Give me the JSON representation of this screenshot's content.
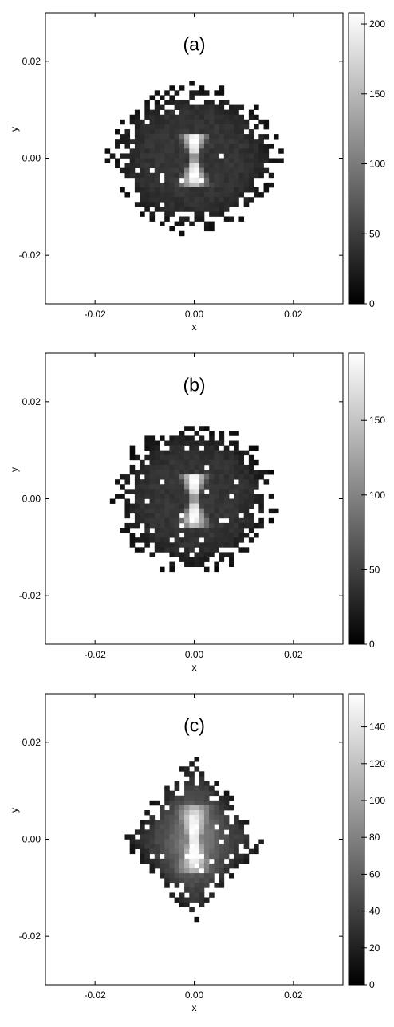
{
  "chart_data": [
    {
      "type": "heatmap",
      "panel_label": "(a)",
      "xlabel": "x",
      "ylabel": "y",
      "xlim": [
        -0.03,
        0.03
      ],
      "ylim": [
        -0.03,
        0.03
      ],
      "xticks": [
        "-0.02",
        "0.00",
        "0.02"
      ],
      "yticks": [
        "0.02",
        "0.00",
        "-0.02"
      ],
      "colorbar": {
        "min": 0,
        "max": 208,
        "ticks": [
          "200",
          "150",
          "100",
          "50",
          "0"
        ],
        "tick_values": [
          200,
          150,
          100,
          50,
          0
        ]
      },
      "shape": "hourglass",
      "spread": {
        "x": 0.0155,
        "y": 0.0135
      },
      "peak_value": 208
    },
    {
      "type": "heatmap",
      "panel_label": "(b)",
      "xlabel": "x",
      "ylabel": "y",
      "xlim": [
        -0.03,
        0.03
      ],
      "ylim": [
        -0.03,
        0.03
      ],
      "xticks": [
        "-0.02",
        "0.00",
        "0.02"
      ],
      "yticks": [
        "0.02",
        "0.00",
        "-0.02"
      ],
      "colorbar": {
        "min": 0,
        "max": 195,
        "ticks": [
          "150",
          "100",
          "50",
          "0"
        ],
        "tick_values": [
          150,
          100,
          50,
          0
        ]
      },
      "shape": "hourglass",
      "spread": {
        "x": 0.0145,
        "y": 0.0135
      },
      "peak_value": 195
    },
    {
      "type": "heatmap",
      "panel_label": "(c)",
      "xlabel": "x",
      "ylabel": "y",
      "xlim": [
        -0.03,
        0.03
      ],
      "ylim": [
        -0.03,
        0.03
      ],
      "xticks": [
        "-0.02",
        "0.00",
        "0.02"
      ],
      "yticks": [
        "0.02",
        "0.00",
        "-0.02"
      ],
      "colorbar": {
        "min": 0,
        "max": 158,
        "ticks": [
          "140",
          "120",
          "100",
          "80",
          "60",
          "40",
          "20",
          "0"
        ],
        "tick_values": [
          140,
          120,
          100,
          80,
          60,
          40,
          20,
          0
        ]
      },
      "shape": "diamond",
      "spread": {
        "x": 0.013,
        "y": 0.0155
      },
      "peak_value": 158
    }
  ]
}
